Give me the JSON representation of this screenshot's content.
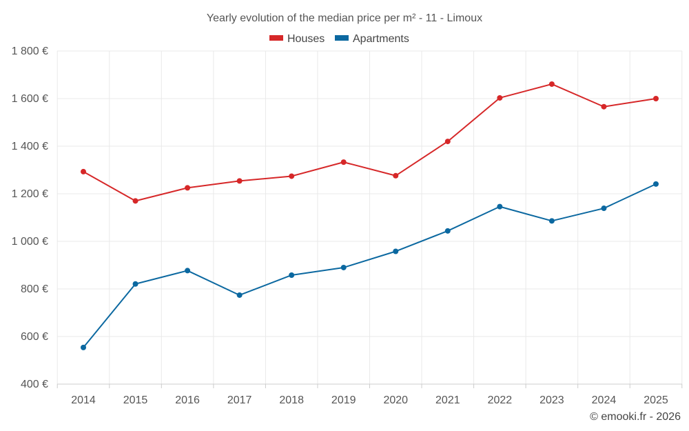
{
  "chart_data": {
    "type": "line",
    "title": "Yearly evolution of the median price per m² - 11 - Limoux",
    "categories": [
      "2014",
      "2015",
      "2016",
      "2017",
      "2018",
      "2019",
      "2020",
      "2021",
      "2022",
      "2023",
      "2024",
      "2025"
    ],
    "series": [
      {
        "name": "Houses",
        "color": "#d62728",
        "values": [
          1293,
          1170,
          1225,
          1254,
          1274,
          1333,
          1276,
          1420,
          1603,
          1661,
          1566,
          1600
        ]
      },
      {
        "name": "Apartments",
        "color": "#0b68a0",
        "values": [
          554,
          821,
          877,
          774,
          858,
          890,
          958,
          1044,
          1146,
          1086,
          1139,
          1241
        ]
      }
    ],
    "ylim": [
      400,
      1800
    ],
    "yticks": [
      400,
      600,
      800,
      1000,
      1200,
      1400,
      1600,
      1800
    ],
    "ytick_labels": [
      "400 €",
      "600 €",
      "800 €",
      "1 000 €",
      "1 200 €",
      "1 400 €",
      "1 600 €",
      "1 800 €"
    ],
    "xlabel": "",
    "ylabel": "",
    "grid": true,
    "legend_position": "top-center",
    "credit": "© emooki.fr - 2026"
  }
}
